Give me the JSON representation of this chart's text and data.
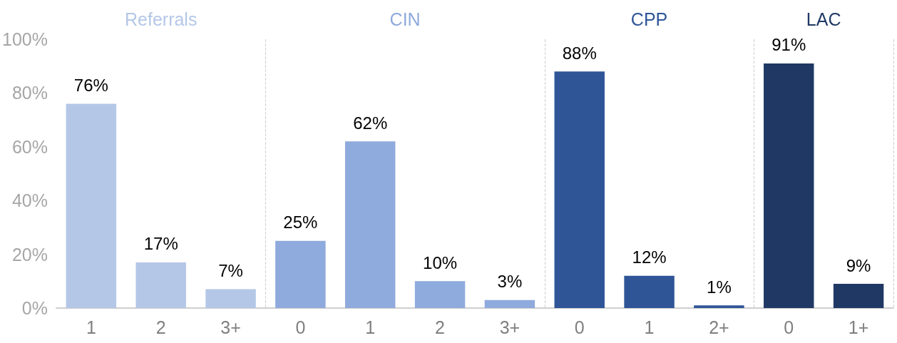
{
  "chart_data": {
    "type": "bar",
    "categories": [
      "1",
      "2",
      "3+",
      "0",
      "1",
      "2",
      "3+",
      "0",
      "1",
      "2+",
      "0",
      "1+"
    ],
    "series": [
      {
        "name": "Referrals",
        "color": "#b4c7e7",
        "values": [
          76,
          17,
          7,
          null,
          null,
          null,
          null,
          null,
          null,
          null,
          null,
          null
        ],
        "value_labels": [
          "76%",
          "17%",
          "7%",
          null,
          null,
          null,
          null,
          null,
          null,
          null,
          null,
          null
        ]
      },
      {
        "name": "CIN",
        "color": "#8faadc",
        "values": [
          null,
          null,
          null,
          25,
          62,
          10,
          3,
          null,
          null,
          null,
          null,
          null
        ],
        "value_labels": [
          null,
          null,
          null,
          "25%",
          "62%",
          "10%",
          "3%",
          null,
          null,
          null,
          null,
          null
        ]
      },
      {
        "name": "CPP",
        "color": "#2f5597",
        "values": [
          null,
          null,
          null,
          null,
          null,
          null,
          null,
          88,
          12,
          1,
          null,
          null
        ],
        "value_labels": [
          null,
          null,
          null,
          null,
          null,
          null,
          null,
          "88%",
          "12%",
          "1%",
          null,
          null
        ]
      },
      {
        "name": "LAC",
        "color": "#203864",
        "values": [
          null,
          null,
          null,
          null,
          null,
          null,
          null,
          null,
          null,
          null,
          91,
          9
        ],
        "value_labels": [
          null,
          null,
          null,
          null,
          null,
          null,
          null,
          null,
          null,
          null,
          "91%",
          "9%"
        ]
      }
    ],
    "ylim": [
      0,
      100
    ],
    "yticks": [
      {
        "value": 0,
        "label": "0%"
      },
      {
        "value": 20,
        "label": "20%"
      },
      {
        "value": 40,
        "label": "40%"
      },
      {
        "value": 60,
        "label": "60%"
      },
      {
        "value": 80,
        "label": "80%"
      },
      {
        "value": 100,
        "label": "100%"
      }
    ],
    "grid": false,
    "legend": false
  }
}
